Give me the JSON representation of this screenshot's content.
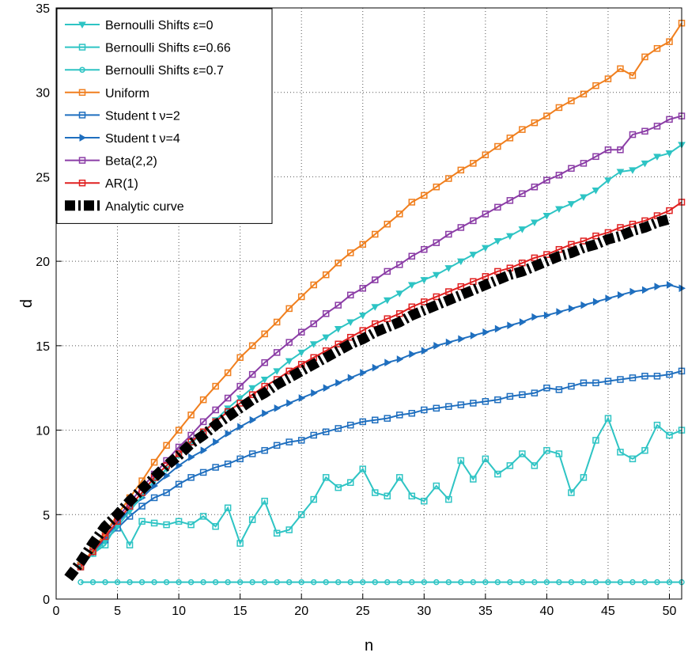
{
  "chart_data": {
    "type": "line",
    "xlabel": "n",
    "ylabel": "d",
    "xlim": [
      0,
      51
    ],
    "ylim": [
      0,
      35
    ],
    "xticks": [
      0,
      5,
      10,
      15,
      20,
      25,
      30,
      35,
      40,
      45,
      50
    ],
    "yticks": [
      0,
      5,
      10,
      15,
      20,
      25,
      30,
      35
    ],
    "grid": true,
    "legend_position": "top-left",
    "series": [
      {
        "name": "Bernoulli Shifts ε=0",
        "color": "#2ec4c4",
        "marker": "triangle-down",
        "x": [
          2,
          3,
          4,
          5,
          6,
          7,
          8,
          9,
          10,
          11,
          12,
          13,
          14,
          15,
          16,
          17,
          18,
          19,
          20,
          21,
          22,
          23,
          24,
          25,
          26,
          27,
          28,
          29,
          30,
          31,
          32,
          33,
          34,
          35,
          36,
          37,
          38,
          39,
          40,
          41,
          42,
          43,
          44,
          45,
          46,
          47,
          48,
          49,
          50,
          51
        ],
        "values": [
          2.0,
          2.7,
          3.4,
          4.3,
          5.2,
          6.1,
          7.0,
          7.7,
          8.5,
          9.2,
          9.9,
          10.6,
          11.3,
          11.9,
          12.5,
          13.0,
          13.5,
          14.1,
          14.6,
          15.1,
          15.5,
          16.0,
          16.4,
          16.8,
          17.3,
          17.7,
          18.1,
          18.6,
          18.9,
          19.2,
          19.6,
          20.0,
          20.4,
          20.8,
          21.2,
          21.5,
          21.9,
          22.3,
          22.7,
          23.1,
          23.4,
          23.8,
          24.2,
          24.8,
          25.3,
          25.4,
          25.8,
          26.2,
          26.4,
          26.9
        ]
      },
      {
        "name": "Bernoulli Shifts ε=0.66",
        "color": "#2ec4c4",
        "marker": "square",
        "x": [
          2,
          3,
          4,
          5,
          6,
          7,
          8,
          9,
          10,
          11,
          12,
          13,
          14,
          15,
          16,
          17,
          18,
          19,
          20,
          21,
          22,
          23,
          24,
          25,
          26,
          27,
          28,
          29,
          30,
          31,
          32,
          33,
          34,
          35,
          36,
          37,
          38,
          39,
          40,
          41,
          42,
          43,
          44,
          45,
          46,
          47,
          48,
          49,
          50,
          51
        ],
        "values": [
          1.9,
          2.7,
          3.2,
          4.5,
          3.2,
          4.6,
          4.5,
          4.4,
          4.6,
          4.4,
          4.9,
          4.3,
          5.4,
          3.3,
          4.7,
          5.8,
          3.9,
          4.1,
          5.0,
          5.9,
          7.2,
          6.6,
          6.9,
          7.7,
          6.3,
          6.1,
          7.2,
          6.1,
          5.8,
          6.7,
          5.9,
          8.2,
          7.1,
          8.3,
          7.4,
          7.9,
          8.6,
          7.9,
          8.8,
          8.6,
          6.3,
          7.2,
          9.4,
          10.7,
          8.7,
          8.3,
          8.8,
          10.3,
          9.7,
          10.0
        ]
      },
      {
        "name": "Bernoulli Shifts ε=0.7",
        "color": "#2ec4c4",
        "marker": "circle",
        "x": [
          2,
          3,
          4,
          5,
          6,
          7,
          8,
          9,
          10,
          11,
          12,
          13,
          14,
          15,
          16,
          17,
          18,
          19,
          20,
          21,
          22,
          23,
          24,
          25,
          26,
          27,
          28,
          29,
          30,
          31,
          32,
          33,
          34,
          35,
          36,
          37,
          38,
          39,
          40,
          41,
          42,
          43,
          44,
          45,
          46,
          47,
          48,
          49,
          50,
          51
        ],
        "values": [
          1.0,
          1.0,
          1.0,
          1.0,
          1.0,
          1.0,
          1.0,
          1.0,
          1.0,
          1.0,
          1.0,
          1.0,
          1.0,
          1.0,
          1.0,
          1.0,
          1.0,
          1.0,
          1.0,
          1.0,
          1.0,
          1.0,
          1.0,
          1.0,
          1.0,
          1.0,
          1.0,
          1.0,
          1.0,
          1.0,
          1.0,
          1.0,
          1.0,
          1.0,
          1.0,
          1.0,
          1.0,
          1.0,
          1.0,
          1.0,
          1.0,
          1.0,
          1.0,
          1.0,
          1.0,
          1.0,
          1.0,
          1.0,
          1.0,
          1.0
        ]
      },
      {
        "name": "Uniform",
        "color": "#f07f1e",
        "marker": "square",
        "x": [
          2,
          3,
          4,
          5,
          6,
          7,
          8,
          9,
          10,
          11,
          12,
          13,
          14,
          15,
          16,
          17,
          18,
          19,
          20,
          21,
          22,
          23,
          24,
          25,
          26,
          27,
          28,
          29,
          30,
          31,
          32,
          33,
          34,
          35,
          36,
          37,
          38,
          39,
          40,
          41,
          42,
          43,
          44,
          45,
          46,
          47,
          48,
          49,
          50,
          51
        ],
        "values": [
          2.0,
          2.9,
          3.9,
          5.0,
          6.0,
          7.0,
          8.1,
          9.1,
          10.0,
          10.9,
          11.8,
          12.6,
          13.4,
          14.3,
          15.0,
          15.7,
          16.4,
          17.2,
          17.9,
          18.6,
          19.2,
          19.9,
          20.5,
          21.0,
          21.6,
          22.2,
          22.8,
          23.5,
          23.9,
          24.4,
          24.9,
          25.4,
          25.8,
          26.3,
          26.8,
          27.3,
          27.8,
          28.2,
          28.6,
          29.1,
          29.5,
          29.9,
          30.4,
          30.8,
          31.4,
          31.0,
          32.1,
          32.6,
          33.0,
          34.1
        ]
      },
      {
        "name": "Student t ν=2",
        "color": "#1f6fbf",
        "marker": "square",
        "x": [
          2,
          3,
          4,
          5,
          6,
          7,
          8,
          9,
          10,
          11,
          12,
          13,
          14,
          15,
          16,
          17,
          18,
          19,
          20,
          21,
          22,
          23,
          24,
          25,
          26,
          27,
          28,
          29,
          30,
          31,
          32,
          33,
          34,
          35,
          36,
          37,
          38,
          39,
          40,
          41,
          42,
          43,
          44,
          45,
          46,
          47,
          48,
          49,
          50,
          51
        ],
        "values": [
          2.0,
          2.8,
          3.5,
          4.2,
          4.9,
          5.5,
          6.0,
          6.3,
          6.8,
          7.2,
          7.5,
          7.8,
          8.0,
          8.3,
          8.6,
          8.8,
          9.1,
          9.3,
          9.4,
          9.7,
          9.9,
          10.1,
          10.3,
          10.5,
          10.6,
          10.7,
          10.9,
          11.0,
          11.2,
          11.3,
          11.4,
          11.5,
          11.6,
          11.7,
          11.8,
          12.0,
          12.1,
          12.2,
          12.5,
          12.4,
          12.6,
          12.8,
          12.8,
          12.9,
          13.0,
          13.1,
          13.2,
          13.2,
          13.3,
          13.5
        ]
      },
      {
        "name": "Student t ν=4",
        "color": "#1f6fbf",
        "marker": "triangle-right",
        "x": [
          2,
          3,
          4,
          5,
          6,
          7,
          8,
          9,
          10,
          11,
          12,
          13,
          14,
          15,
          16,
          17,
          18,
          19,
          20,
          21,
          22,
          23,
          24,
          25,
          26,
          27,
          28,
          29,
          30,
          31,
          32,
          33,
          34,
          35,
          36,
          37,
          38,
          39,
          40,
          41,
          42,
          43,
          44,
          45,
          46,
          47,
          48,
          49,
          50,
          51
        ],
        "values": [
          2.0,
          2.8,
          3.6,
          4.5,
          5.3,
          6.0,
          6.7,
          7.3,
          7.9,
          8.4,
          8.8,
          9.3,
          9.8,
          10.2,
          10.6,
          11.0,
          11.3,
          11.6,
          11.9,
          12.2,
          12.5,
          12.8,
          13.1,
          13.4,
          13.7,
          14.0,
          14.2,
          14.5,
          14.7,
          15.0,
          15.2,
          15.4,
          15.6,
          15.8,
          16.0,
          16.2,
          16.4,
          16.7,
          16.8,
          17.0,
          17.2,
          17.4,
          17.6,
          17.8,
          18.0,
          18.2,
          18.3,
          18.5,
          18.6,
          18.4
        ]
      },
      {
        "name": "Beta(2,2)",
        "color": "#8b3da6",
        "marker": "square",
        "x": [
          2,
          3,
          4,
          5,
          6,
          7,
          8,
          9,
          10,
          11,
          12,
          13,
          14,
          15,
          16,
          17,
          18,
          19,
          20,
          21,
          22,
          23,
          24,
          25,
          26,
          27,
          28,
          29,
          30,
          31,
          32,
          33,
          34,
          35,
          36,
          37,
          38,
          39,
          40,
          41,
          42,
          43,
          44,
          45,
          46,
          47,
          48,
          49,
          50,
          51
        ],
        "values": [
          2.0,
          2.9,
          3.9,
          4.8,
          5.7,
          6.6,
          7.4,
          8.2,
          9.0,
          9.7,
          10.5,
          11.2,
          11.9,
          12.6,
          13.3,
          14.0,
          14.6,
          15.2,
          15.8,
          16.3,
          16.9,
          17.4,
          18.0,
          18.4,
          18.9,
          19.4,
          19.8,
          20.3,
          20.7,
          21.1,
          21.6,
          22.0,
          22.4,
          22.8,
          23.2,
          23.6,
          24.0,
          24.4,
          24.8,
          25.1,
          25.5,
          25.8,
          26.2,
          26.6,
          26.6,
          27.5,
          27.7,
          28.0,
          28.4,
          28.6
        ]
      },
      {
        "name": "AR(1)",
        "color": "#e02020",
        "marker": "square",
        "x": [
          2,
          3,
          4,
          5,
          6,
          7,
          8,
          9,
          10,
          11,
          12,
          13,
          14,
          15,
          16,
          17,
          18,
          19,
          20,
          21,
          22,
          23,
          24,
          25,
          26,
          27,
          28,
          29,
          30,
          31,
          32,
          33,
          34,
          35,
          36,
          37,
          38,
          39,
          40,
          41,
          42,
          43,
          44,
          45,
          46,
          47,
          48,
          49,
          50,
          51
        ],
        "values": [
          1.9,
          2.8,
          3.7,
          4.6,
          5.5,
          6.3,
          7.2,
          7.9,
          8.6,
          9.3,
          9.9,
          10.5,
          11.1,
          11.6,
          12.1,
          12.6,
          13.0,
          13.5,
          13.9,
          14.3,
          14.7,
          15.1,
          15.5,
          15.9,
          16.3,
          16.6,
          16.9,
          17.3,
          17.6,
          17.9,
          18.2,
          18.5,
          18.8,
          19.1,
          19.4,
          19.6,
          19.9,
          20.2,
          20.4,
          20.7,
          21.0,
          21.2,
          21.5,
          21.7,
          22.0,
          22.2,
          22.4,
          22.7,
          23.0,
          23.5
        ]
      },
      {
        "name": "Analytic curve",
        "color": "#000000",
        "marker": "none",
        "style": "thick-dashdot",
        "x": [
          1,
          2,
          3,
          4,
          5,
          6,
          7,
          8,
          9,
          10,
          11,
          12,
          13,
          14,
          15,
          16,
          17,
          18,
          19,
          20,
          21,
          22,
          23,
          24,
          25,
          26,
          27,
          28,
          29,
          30,
          31,
          32,
          33,
          34,
          35,
          36,
          37,
          38,
          39,
          40,
          41,
          42,
          43,
          44,
          45,
          46,
          47,
          48,
          49,
          50
        ],
        "values": [
          1.25,
          2.2,
          3.3,
          4.3,
          5.0,
          5.8,
          6.5,
          7.2,
          7.9,
          8.5,
          9.2,
          9.7,
          10.3,
          10.8,
          11.3,
          11.8,
          12.2,
          12.7,
          13.1,
          13.5,
          13.9,
          14.3,
          14.7,
          15.1,
          15.4,
          15.8,
          16.1,
          16.4,
          16.8,
          17.1,
          17.4,
          17.7,
          18.0,
          18.3,
          18.6,
          18.9,
          19.2,
          19.4,
          19.7,
          20.0,
          20.3,
          20.5,
          20.8,
          21.0,
          21.3,
          21.5,
          21.8,
          22.0,
          22.3,
          22.5
        ]
      }
    ]
  }
}
